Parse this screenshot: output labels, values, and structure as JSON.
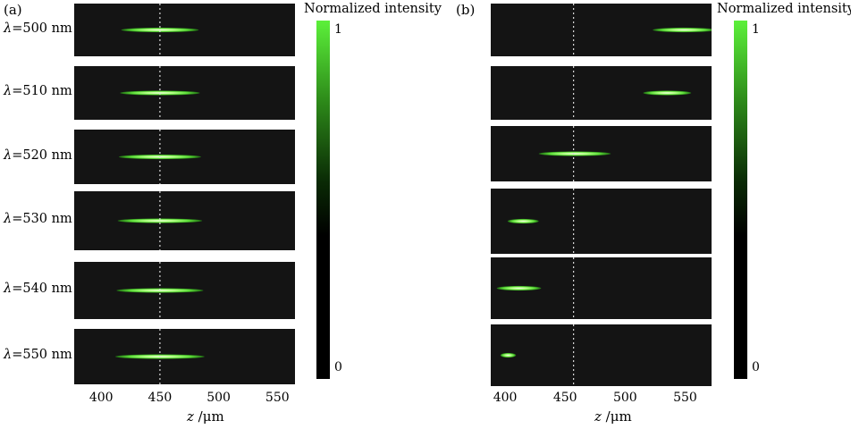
{
  "chart_data": [
    {
      "type": "heatmap",
      "panel_label": "(a)",
      "colorbar": {
        "title": "Normalized intensity",
        "max_label": "1",
        "min_label": "0",
        "colors": [
          "#000000",
          "#0a2a05",
          "#2e8c1a",
          "#5cf03a"
        ]
      },
      "xlabel_var": "z",
      "xlabel_unit": " /μm",
      "x_ticks": [
        "400",
        "450",
        "500",
        "550"
      ],
      "xlim": [
        377,
        565
      ],
      "reference_line_z": 450,
      "rows": [
        {
          "label_sym": "λ",
          "label_text": "=500 nm",
          "wavelength_nm": 500,
          "focus_z": 450,
          "spot_z_range": [
            417,
            483
          ]
        },
        {
          "label_sym": "λ",
          "label_text": "=510 nm",
          "wavelength_nm": 510,
          "focus_z": 450,
          "spot_z_range": [
            416,
            484
          ]
        },
        {
          "label_sym": "λ",
          "label_text": "=520 nm",
          "wavelength_nm": 520,
          "focus_z": 450,
          "spot_z_range": [
            415,
            485
          ]
        },
        {
          "label_sym": "λ",
          "label_text": "=530 nm",
          "wavelength_nm": 530,
          "focus_z": 450,
          "spot_z_range": [
            414,
            486
          ]
        },
        {
          "label_sym": "λ",
          "label_text": "=540 nm",
          "wavelength_nm": 540,
          "focus_z": 450,
          "spot_z_range": [
            413,
            487
          ]
        },
        {
          "label_sym": "λ",
          "label_text": "=550 nm",
          "wavelength_nm": 550,
          "focus_z": 450,
          "spot_z_range": [
            412,
            488
          ]
        }
      ]
    },
    {
      "type": "heatmap",
      "panel_label": "(b)",
      "colorbar": {
        "title": "Normalized intensity",
        "max_label": "1",
        "min_label": "0",
        "colors": [
          "#000000",
          "#0a2a05",
          "#2e8c1a",
          "#5cf03a"
        ]
      },
      "xlabel_var": "z",
      "xlabel_unit": " /μm",
      "x_ticks": [
        "400",
        "450",
        "500",
        "550"
      ],
      "xlim": [
        388,
        572
      ],
      "reference_line_z": 457,
      "rows": [
        {
          "wavelength_nm": 500,
          "focus_z": 560,
          "spot_z_range": [
            523,
            575
          ]
        },
        {
          "wavelength_nm": 510,
          "focus_z": 535,
          "spot_z_range": [
            515,
            555
          ]
        },
        {
          "wavelength_nm": 520,
          "focus_z": 458,
          "spot_z_range": [
            428,
            488
          ]
        },
        {
          "wavelength_nm": 530,
          "focus_z": 415,
          "spot_z_range": [
            402,
            428
          ]
        },
        {
          "wavelength_nm": 540,
          "focus_z": 410,
          "spot_z_range": [
            393,
            430
          ]
        },
        {
          "wavelength_nm": 550,
          "focus_z": 402,
          "spot_z_range": [
            396,
            409
          ]
        }
      ]
    }
  ]
}
